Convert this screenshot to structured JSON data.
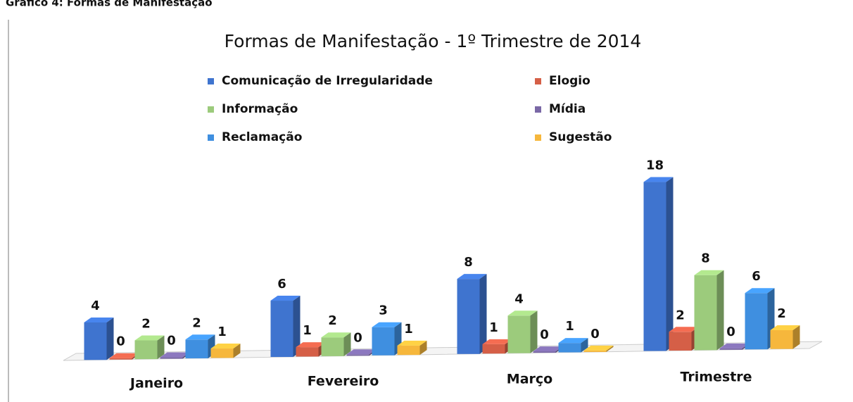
{
  "header": "Gráfico 4: Formas de Manifestação",
  "chart_data": {
    "type": "bar3d",
    "title": "Formas de Manifestação - 1º Trimestre de 2014",
    "categories": [
      "Janeiro",
      "Fevereiro",
      "Março",
      "Trimestre"
    ],
    "series": [
      {
        "name": "Comunicação de Irregularidade",
        "color": "#3f74cf",
        "values": [
          4,
          6,
          8,
          18
        ]
      },
      {
        "name": "Elogio",
        "color": "#d55f47",
        "values": [
          0,
          1,
          1,
          2
        ]
      },
      {
        "name": "Informação",
        "color": "#9ccb7c",
        "values": [
          2,
          2,
          4,
          8
        ]
      },
      {
        "name": "Mídia",
        "color": "#7a68a6",
        "values": [
          0,
          0,
          0,
          0
        ]
      },
      {
        "name": "Reclamação",
        "color": "#3f8fe0",
        "values": [
          2,
          3,
          1,
          6
        ]
      },
      {
        "name": "Sugestão",
        "color": "#f6b73c",
        "values": [
          1,
          1,
          0,
          2
        ]
      }
    ]
  }
}
